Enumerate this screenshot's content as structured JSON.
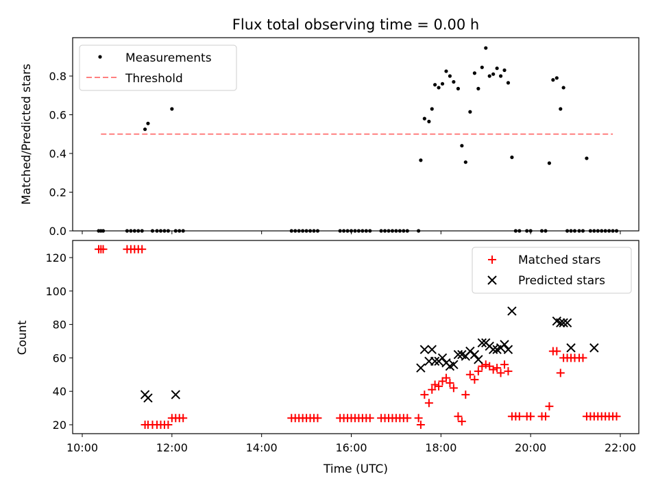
{
  "colors": {
    "threshold": "#ff7f7f",
    "matched": "#ff0000",
    "predicted": "#000000",
    "measurements": "#000000"
  },
  "chart_data": [
    {
      "type": "scatter",
      "title": "Flux total observing time = 0.00 h",
      "xlabel": "",
      "ylabel": "Matched/Predicted stars",
      "xlim": [
        "10:00",
        "22:00"
      ],
      "ylim": [
        0,
        1.0
      ],
      "yticks": [
        "0.0",
        "0.2",
        "0.4",
        "0.6",
        "0.8"
      ],
      "grid": false,
      "legend": "top-left",
      "legend_entries": [
        "Measurements",
        "Threshold"
      ],
      "threshold": {
        "name": "Threshold",
        "value": 0.5,
        "x_start": "10:25",
        "x_end": "21:50"
      },
      "measurements": {
        "name": "Measurements",
        "x": [
          "10:22",
          "10:25",
          "10:28",
          "11:00",
          "11:05",
          "11:10",
          "11:15",
          "11:20",
          "11:24",
          "11:28",
          "11:34",
          "11:40",
          "11:45",
          "11:50",
          "11:55",
          "12:00",
          "12:05",
          "12:10",
          "12:15",
          "14:40",
          "14:45",
          "14:50",
          "14:55",
          "15:00",
          "15:05",
          "15:10",
          "15:15",
          "15:45",
          "15:50",
          "15:55",
          "16:00",
          "16:05",
          "16:10",
          "16:15",
          "16:20",
          "16:25",
          "16:40",
          "16:45",
          "16:50",
          "16:55",
          "17:00",
          "17:05",
          "17:10",
          "17:15",
          "17:30",
          "17:33",
          "17:38",
          "17:44",
          "17:48",
          "17:52",
          "17:57",
          "18:02",
          "18:07",
          "18:12",
          "18:17",
          "18:23",
          "18:28",
          "18:33",
          "18:39",
          "18:45",
          "18:50",
          "18:55",
          "19:00",
          "19:05",
          "19:10",
          "19:15",
          "19:20",
          "19:25",
          "19:30",
          "19:35",
          "19:40",
          "19:45",
          "19:55",
          "20:00",
          "20:15",
          "20:20",
          "20:25",
          "20:30",
          "20:35",
          "20:40",
          "20:44",
          "20:49",
          "20:54",
          "20:59",
          "21:05",
          "21:10",
          "21:15",
          "21:20",
          "21:25",
          "21:30",
          "21:35",
          "21:40",
          "21:45",
          "21:50",
          "21:55"
        ],
        "y": [
          0,
          0,
          0,
          0,
          0,
          0,
          0,
          0,
          0.525,
          0.555,
          0,
          0,
          0,
          0,
          0,
          0.63,
          0,
          0,
          0,
          0,
          0,
          0,
          0,
          0,
          0,
          0,
          0,
          0,
          0,
          0,
          0,
          0,
          0,
          0,
          0,
          0,
          0,
          0,
          0,
          0,
          0,
          0,
          0,
          0,
          0,
          0.365,
          0.58,
          0.565,
          0.63,
          0.755,
          0.74,
          0.76,
          0.825,
          0.8,
          0.77,
          0.735,
          0.44,
          0.355,
          0.615,
          0.815,
          0.735,
          0.845,
          0.945,
          0.8,
          0.81,
          0.84,
          0.8,
          0.83,
          0.765,
          0.38,
          0,
          0,
          0,
          0,
          0,
          0,
          0.35,
          0.78,
          0.79,
          0.63,
          0.74,
          0,
          0,
          0,
          0,
          0,
          0.375,
          0,
          0,
          0,
          0,
          0,
          0,
          0,
          0
        ]
      }
    },
    {
      "type": "scatter",
      "title": "",
      "xlabel": "Time (UTC)",
      "ylabel": "Count",
      "xlim": [
        "10:00",
        "22:00"
      ],
      "ylim": [
        15,
        130
      ],
      "yticks": [
        "20",
        "40",
        "60",
        "80",
        "100",
        "120"
      ],
      "xticks": [
        "10:00",
        "12:00",
        "14:00",
        "16:00",
        "18:00",
        "20:00",
        "22:00"
      ],
      "grid": false,
      "legend": "top-right",
      "legend_entries": [
        "Matched stars",
        "Predicted stars"
      ],
      "series": [
        {
          "name": "Matched stars",
          "x": [
            "10:22",
            "10:25",
            "10:28",
            "11:00",
            "11:05",
            "11:10",
            "11:15",
            "11:20",
            "11:24",
            "11:28",
            "11:34",
            "11:40",
            "11:45",
            "11:50",
            "11:55",
            "12:00",
            "12:05",
            "12:10",
            "12:15",
            "14:40",
            "14:45",
            "14:50",
            "14:55",
            "15:00",
            "15:05",
            "15:10",
            "15:15",
            "15:45",
            "15:50",
            "15:55",
            "16:00",
            "16:05",
            "16:10",
            "16:15",
            "16:20",
            "16:25",
            "16:40",
            "16:45",
            "16:50",
            "16:55",
            "17:00",
            "17:05",
            "17:10",
            "17:15",
            "17:30",
            "17:33",
            "17:38",
            "17:44",
            "17:48",
            "17:52",
            "17:57",
            "18:02",
            "18:07",
            "18:12",
            "18:17",
            "18:23",
            "18:28",
            "18:33",
            "18:39",
            "18:45",
            "18:50",
            "18:55",
            "19:00",
            "19:05",
            "19:10",
            "19:15",
            "19:20",
            "19:25",
            "19:30",
            "19:35",
            "19:40",
            "19:45",
            "19:55",
            "20:00",
            "20:15",
            "20:20",
            "20:25",
            "20:30",
            "20:35",
            "20:40",
            "20:44",
            "20:49",
            "20:54",
            "20:59",
            "21:05",
            "21:10",
            "21:15",
            "21:20",
            "21:25",
            "21:30",
            "21:35",
            "21:40",
            "21:45",
            "21:50",
            "21:55"
          ],
          "y": [
            125,
            125,
            125,
            125,
            125,
            125,
            125,
            125,
            20,
            20,
            20,
            20,
            20,
            20,
            20,
            24,
            24,
            24,
            24,
            24,
            24,
            24,
            24,
            24,
            24,
            24,
            24,
            24,
            24,
            24,
            24,
            24,
            24,
            24,
            24,
            24,
            24,
            24,
            24,
            24,
            24,
            24,
            24,
            24,
            24,
            20,
            38,
            33,
            41,
            44,
            43,
            46,
            48,
            45,
            42,
            25,
            22,
            38,
            50,
            47,
            52,
            55,
            56,
            55,
            53,
            54,
            51,
            56,
            52,
            25,
            25,
            25,
            25,
            25,
            25,
            25,
            31,
            64,
            64,
            51,
            60,
            60,
            60,
            60,
            60,
            60,
            25,
            25,
            25,
            25,
            25,
            25,
            25,
            25,
            25
          ]
        },
        {
          "name": "Predicted stars",
          "x": [
            "11:24",
            "11:28",
            "12:05",
            "17:33",
            "17:38",
            "17:44",
            "17:48",
            "17:52",
            "17:57",
            "18:02",
            "18:07",
            "18:12",
            "18:17",
            "18:23",
            "18:28",
            "18:33",
            "18:39",
            "18:45",
            "18:50",
            "18:55",
            "19:00",
            "19:05",
            "19:10",
            "19:15",
            "19:20",
            "19:25",
            "19:30",
            "19:35",
            "20:35",
            "20:40",
            "20:44",
            "20:49",
            "20:54",
            "21:25"
          ],
          "y": [
            38,
            36,
            38,
            54,
            65,
            58,
            65,
            58,
            58,
            60,
            57,
            55,
            56,
            62,
            62,
            61,
            64,
            62,
            59,
            69,
            69,
            67,
            65,
            65,
            66,
            68,
            65,
            88,
            82,
            81,
            81,
            81,
            66,
            66
          ]
        }
      ]
    }
  ]
}
